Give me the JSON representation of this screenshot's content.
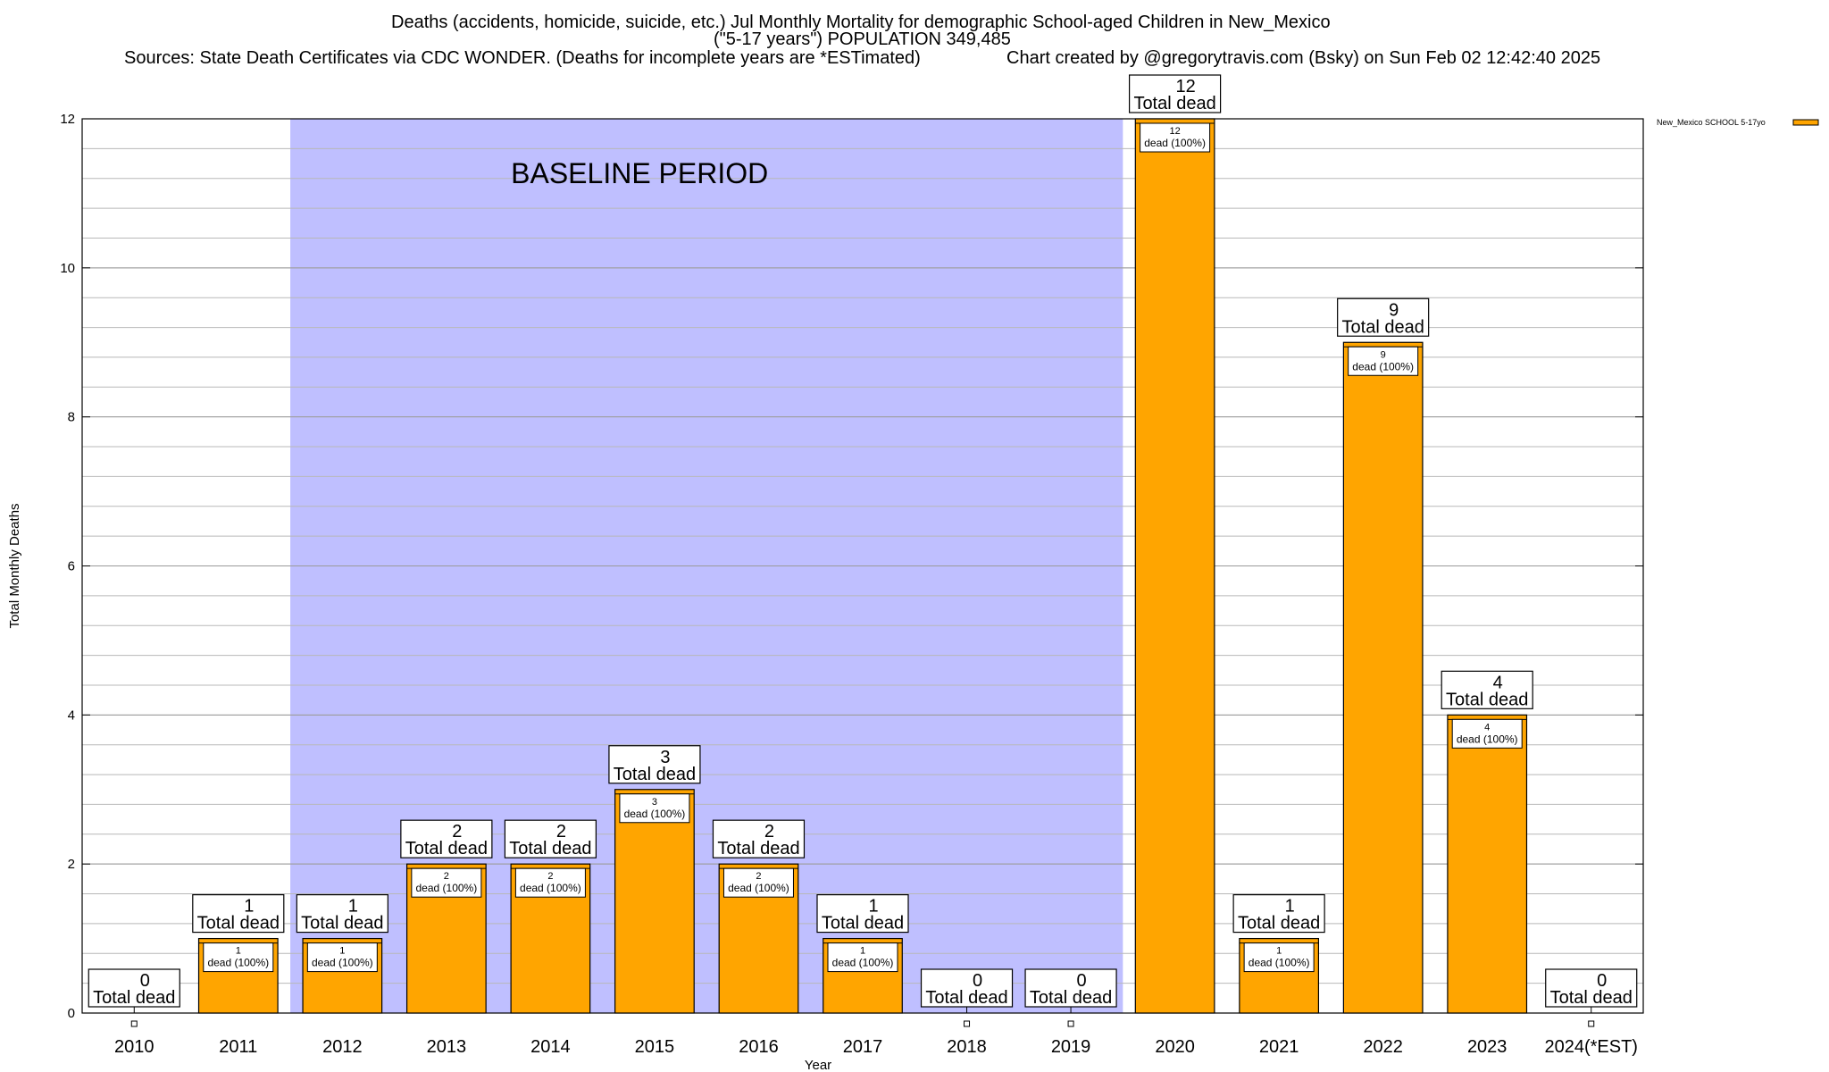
{
  "header": {
    "title": "Deaths (accidents, homicide, suicide, etc.) Jul Monthly Mortality for demographic School-aged Children in New_Mexico",
    "subtitle": "(\"5-17 years\") POPULATION 349,485",
    "sources": "Sources: State Death Certificates via CDC WONDER. (Deaths for incomplete years are *ESTimated)",
    "credit": "Chart created by @gregorytravis.com (Bsky) on Sun Feb 02 12:42:40 2025"
  },
  "chart_data": {
    "type": "bar",
    "xlabel": "Year",
    "ylabel": "Total Monthly Deaths",
    "ylim": [
      0,
      12
    ],
    "yticks": [
      0,
      2,
      4,
      6,
      8,
      10,
      12
    ],
    "grid": true,
    "categories": [
      "2010",
      "2011",
      "2012",
      "2013",
      "2014",
      "2015",
      "2016",
      "2017",
      "2018",
      "2019",
      "2020",
      "2021",
      "2022",
      "2023",
      "2024(*EST)"
    ],
    "series": [
      {
        "name": "New_Mexico SCHOOL 5-17yo",
        "color": "#ffa500",
        "values": [
          0,
          1,
          1,
          2,
          2,
          3,
          2,
          1,
          0,
          0,
          12,
          1,
          9,
          4,
          0
        ]
      }
    ],
    "total_label": "Total dead",
    "inner_label": "dead (100%)",
    "baseline": {
      "label": "BASELINE PERIOD",
      "from": "2012",
      "to": "2019",
      "color": "#bfbfff"
    },
    "legend_position": "top-right"
  }
}
